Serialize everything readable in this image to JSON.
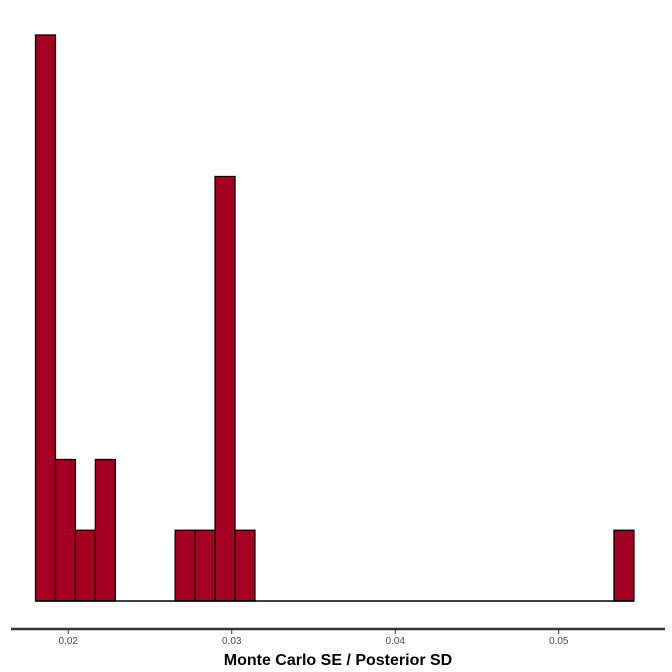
{
  "chart_data": {
    "type": "bar",
    "subtype": "histogram",
    "title": "",
    "xlabel": "Monte Carlo SE / Posterior SD",
    "ylabel": "",
    "xlim": [
      0.0165,
      0.0565
    ],
    "ylim": [
      0,
      8.4
    ],
    "x_ticks": [
      0.02,
      0.03,
      0.04,
      0.05
    ],
    "x_tick_labels": [
      "0.02",
      "0.03",
      "0.04",
      "0.05"
    ],
    "bins": [
      {
        "x0": 0.018,
        "x1": 0.01922,
        "count": 8
      },
      {
        "x0": 0.01922,
        "x1": 0.02044,
        "count": 2
      },
      {
        "x0": 0.02044,
        "x1": 0.02166,
        "count": 1
      },
      {
        "x0": 0.02166,
        "x1": 0.02288,
        "count": 2
      },
      {
        "x0": 0.02654,
        "x1": 0.02776,
        "count": 1
      },
      {
        "x0": 0.02776,
        "x1": 0.02898,
        "count": 1
      },
      {
        "x0": 0.02898,
        "x1": 0.0302,
        "count": 6
      },
      {
        "x0": 0.0302,
        "x1": 0.03142,
        "count": 1
      },
      {
        "x0": 0.05338,
        "x1": 0.0546,
        "count": 1
      }
    ],
    "baseline_range": [
      0.018,
      0.0546
    ],
    "bar_fill": "#a50021",
    "bar_stroke": "#000000",
    "axis_color": "#333333",
    "grid": false,
    "legend": "none"
  }
}
